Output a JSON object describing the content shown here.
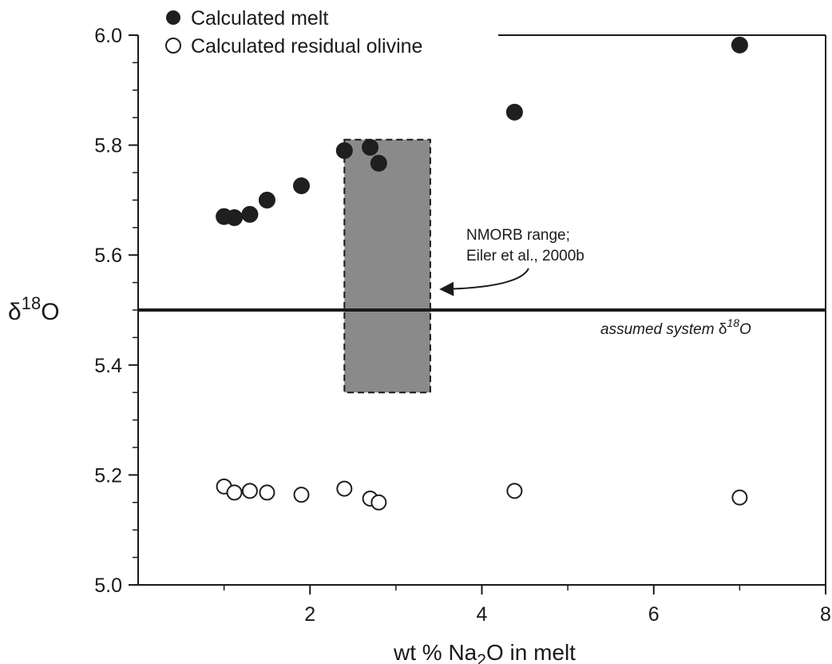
{
  "chart_data": {
    "type": "scatter",
    "xlim": [
      0,
      8
    ],
    "ylim": [
      5.0,
      6.0
    ],
    "x_ticks": [
      2,
      4,
      6,
      8
    ],
    "y_ticks": [
      5.0,
      5.2,
      5.4,
      5.6,
      5.8,
      6.0
    ],
    "y_tick_labels": [
      "5.0",
      "5.2",
      "5.4",
      "5.6",
      "5.8",
      "6.0"
    ],
    "xlabel": {
      "pre": "wt  % Na",
      "sub": "2",
      "post": "O in melt"
    },
    "ylabel": {
      "delta": "δ",
      "sup": "18",
      "post": "O"
    },
    "series": [
      {
        "name": "Calculated melt",
        "marker": "filled-circle",
        "color": "#1f1f1f",
        "points": [
          {
            "x": 1.0,
            "y": 5.67
          },
          {
            "x": 1.12,
            "y": 5.668
          },
          {
            "x": 1.3,
            "y": 5.674
          },
          {
            "x": 1.5,
            "y": 5.7
          },
          {
            "x": 1.9,
            "y": 5.726
          },
          {
            "x": 2.4,
            "y": 5.79
          },
          {
            "x": 2.7,
            "y": 5.796
          },
          {
            "x": 2.8,
            "y": 5.767
          },
          {
            "x": 4.38,
            "y": 5.86
          },
          {
            "x": 7.0,
            "y": 5.982
          }
        ]
      },
      {
        "name": "Calculated residual olivine",
        "marker": "open-circle",
        "color": "#1f1f1f",
        "points": [
          {
            "x": 1.0,
            "y": 5.179
          },
          {
            "x": 1.12,
            "y": 5.168
          },
          {
            "x": 1.3,
            "y": 5.171
          },
          {
            "x": 1.5,
            "y": 5.168
          },
          {
            "x": 1.9,
            "y": 5.164
          },
          {
            "x": 2.4,
            "y": 5.175
          },
          {
            "x": 2.7,
            "y": 5.157
          },
          {
            "x": 2.8,
            "y": 5.15
          },
          {
            "x": 4.38,
            "y": 5.171
          },
          {
            "x": 7.0,
            "y": 5.159
          }
        ]
      }
    ],
    "shaded_range": {
      "x0": 2.4,
      "x1": 3.4,
      "y0": 5.35,
      "y1": 5.81,
      "fill": "#8a8a8a"
    },
    "reference_line": {
      "y": 5.5,
      "label": {
        "pre": "assumed system ",
        "delta": "δ",
        "sup": "18",
        "post": "O"
      }
    },
    "annotation": {
      "lines": [
        "NMORB range;",
        "Eiler et al., 2000b"
      ]
    },
    "legend": {
      "placement": "top-left",
      "entries": [
        "Calculated melt",
        "Calculated residual olivine"
      ]
    },
    "grid": false
  }
}
